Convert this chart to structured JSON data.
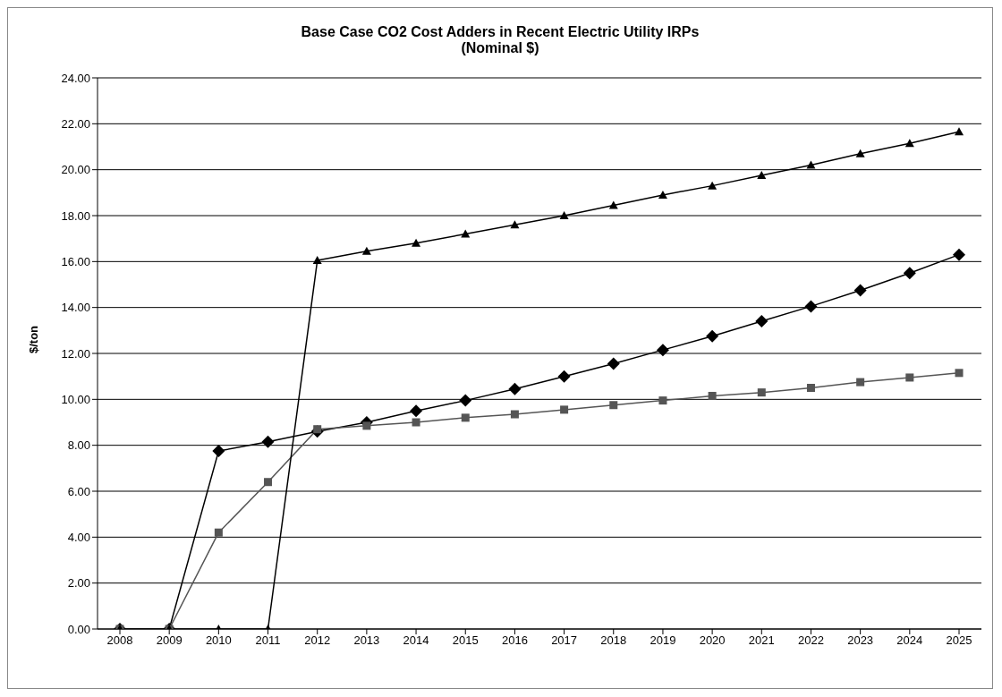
{
  "chart_data": {
    "type": "line",
    "title": "Base Case CO2 Cost Adders in Recent Electric Utility IRPs",
    "subtitle": "(Nominal $)",
    "ylabel": "$/ton",
    "categories": [
      "2008",
      "2009",
      "2010",
      "2011",
      "2012",
      "2013",
      "2014",
      "2015",
      "2016",
      "2017",
      "2018",
      "2019",
      "2020",
      "2021",
      "2022",
      "2023",
      "2024",
      "2025"
    ],
    "series": [
      {
        "color": "#000000",
        "marker": "diamond",
        "values": [
          0,
          0,
          7.75,
          8.15,
          8.6,
          9.0,
          9.5,
          9.95,
          10.45,
          11.0,
          11.55,
          12.15,
          12.75,
          13.4,
          14.05,
          14.75,
          15.5,
          16.3
        ]
      },
      {
        "color": "#555555",
        "marker": "square",
        "values": [
          0,
          0,
          4.2,
          6.4,
          8.7,
          8.85,
          9.0,
          9.2,
          9.35,
          9.55,
          9.75,
          9.95,
          10.15,
          10.3,
          10.5,
          10.75,
          10.95,
          11.15
        ]
      },
      {
        "color": "#000000",
        "marker": "triangle",
        "values": [
          0,
          0,
          0,
          0,
          16.05,
          16.45,
          16.8,
          17.2,
          17.6,
          18.0,
          18.45,
          18.9,
          19.3,
          19.75,
          20.2,
          20.7,
          21.15,
          21.65
        ]
      }
    ],
    "ylim": [
      0,
      24
    ],
    "yticks": [
      {
        "value": 0,
        "label": "0.00"
      },
      {
        "value": 2,
        "label": "2.00"
      },
      {
        "value": 4,
        "label": "4.00"
      },
      {
        "value": 6,
        "label": "6.00"
      },
      {
        "value": 8,
        "label": "8.00"
      },
      {
        "value": 10,
        "label": "10.00"
      },
      {
        "value": 12,
        "label": "12.00"
      },
      {
        "value": 14,
        "label": "14.00"
      },
      {
        "value": 16,
        "label": "16.00"
      },
      {
        "value": 18,
        "label": "18.00"
      },
      {
        "value": 20,
        "label": "20.00"
      },
      {
        "value": 22,
        "label": "22.00"
      },
      {
        "value": 24,
        "label": "24.00"
      }
    ],
    "grid": "y",
    "legend": false,
    "line_style": "solid"
  }
}
